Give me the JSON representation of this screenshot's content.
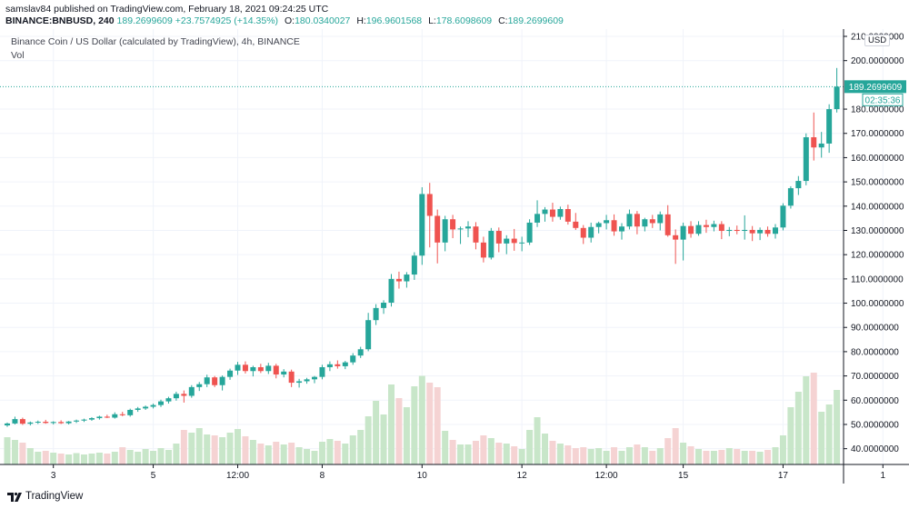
{
  "header": {
    "publisher": "samslav84 published on TradingView.com, February 18, 2021 09:24:25 UTC",
    "symbol": "BINANCE:BNBUSD, 240",
    "last": "189.2699609",
    "change": "+23.7574925 (+14.35%)",
    "o_label": "O:",
    "o_value": "180.0340027",
    "h_label": "H:",
    "h_value": "196.9601568",
    "l_label": "L:",
    "l_value": "178.6098609",
    "c_label": "C:",
    "c_value": "189.2699609"
  },
  "legend": {
    "title": "Binance Coin / US Dollar (calculated by TradingView), 4h, BINANCE",
    "vol": "Vol"
  },
  "footer": {
    "brand": "TradingView"
  },
  "colors": {
    "up": "#26a69a",
    "down": "#ef5350",
    "vol_up": "#c8e6c9",
    "vol_down": "#f5d3d3",
    "grid": "#f0f3fa",
    "price_line": "#26a69a"
  },
  "chart_data": {
    "type": "candlestick",
    "currency_label": "USD",
    "y_ticks": [
      "40.0000000",
      "50.0000000",
      "60.0000000",
      "70.0000000",
      "80.0000000",
      "90.0000000",
      "100.0000000",
      "110.0000000",
      "120.0000000",
      "130.0000000",
      "140.0000000",
      "150.0000000",
      "160.0000000",
      "170.0000000",
      "180.0000000",
      "200.0000000",
      "210.0000000"
    ],
    "y_tick_values": [
      40,
      50,
      60,
      70,
      80,
      90,
      100,
      110,
      120,
      130,
      140,
      150,
      160,
      170,
      180,
      200,
      210
    ],
    "ylim": [
      33.5,
      213
    ],
    "x_ticks": [
      {
        "label": "3",
        "index": 6
      },
      {
        "label": "5",
        "index": 19
      },
      {
        "label": "12:00",
        "index": 30
      },
      {
        "label": "8",
        "index": 41
      },
      {
        "label": "10",
        "index": 54
      },
      {
        "label": "12",
        "index": 67
      },
      {
        "label": "12:00",
        "index": 78
      },
      {
        "label": "15",
        "index": 88
      },
      {
        "label": "17",
        "index": 101
      },
      {
        "label": "1",
        "index": 114
      }
    ],
    "last_price": "189.2699609",
    "last_value": 189.27,
    "countdown": "02:35:36",
    "candles": [
      {
        "o": 49.6,
        "h": 50.8,
        "l": 49.0,
        "c": 50.4,
        "v": 6.0
      },
      {
        "o": 50.4,
        "h": 53.2,
        "l": 50.0,
        "c": 52.2,
        "v": 5.4
      },
      {
        "o": 52.2,
        "h": 52.8,
        "l": 49.8,
        "c": 50.3,
        "v": 4.8
      },
      {
        "o": 50.3,
        "h": 51.2,
        "l": 49.6,
        "c": 50.8,
        "v": 3.6
      },
      {
        "o": 50.8,
        "h": 51.6,
        "l": 50.2,
        "c": 51.1,
        "v": 2.8
      },
      {
        "o": 51.1,
        "h": 51.9,
        "l": 50.3,
        "c": 50.6,
        "v": 3.0
      },
      {
        "o": 50.6,
        "h": 51.3,
        "l": 50.0,
        "c": 51.0,
        "v": 2.6
      },
      {
        "o": 51.0,
        "h": 51.7,
        "l": 50.2,
        "c": 50.5,
        "v": 2.4
      },
      {
        "o": 50.5,
        "h": 51.4,
        "l": 50.0,
        "c": 51.2,
        "v": 2.2
      },
      {
        "o": 51.2,
        "h": 52.0,
        "l": 50.6,
        "c": 51.6,
        "v": 2.5
      },
      {
        "o": 51.6,
        "h": 52.4,
        "l": 51.0,
        "c": 52.0,
        "v": 2.2
      },
      {
        "o": 52.0,
        "h": 53.0,
        "l": 51.5,
        "c": 52.6,
        "v": 2.4
      },
      {
        "o": 52.6,
        "h": 53.6,
        "l": 52.0,
        "c": 53.2,
        "v": 2.6
      },
      {
        "o": 53.2,
        "h": 54.0,
        "l": 52.6,
        "c": 52.8,
        "v": 2.4
      },
      {
        "o": 52.8,
        "h": 55.0,
        "l": 52.4,
        "c": 54.2,
        "v": 2.8
      },
      {
        "o": 54.2,
        "h": 55.2,
        "l": 53.4,
        "c": 53.8,
        "v": 3.8
      },
      {
        "o": 53.8,
        "h": 56.5,
        "l": 53.2,
        "c": 56.0,
        "v": 3.2
      },
      {
        "o": 56.0,
        "h": 57.2,
        "l": 55.2,
        "c": 56.6,
        "v": 2.8
      },
      {
        "o": 56.6,
        "h": 57.8,
        "l": 56.0,
        "c": 57.3,
        "v": 3.4
      },
      {
        "o": 57.3,
        "h": 58.6,
        "l": 56.6,
        "c": 58.0,
        "v": 3.0
      },
      {
        "o": 58.0,
        "h": 60.2,
        "l": 57.2,
        "c": 59.5,
        "v": 3.6
      },
      {
        "o": 59.5,
        "h": 61.4,
        "l": 58.6,
        "c": 60.8,
        "v": 3.2
      },
      {
        "o": 60.8,
        "h": 63.5,
        "l": 59.8,
        "c": 62.6,
        "v": 4.6
      },
      {
        "o": 62.6,
        "h": 64.0,
        "l": 59.0,
        "c": 61.8,
        "v": 7.6
      },
      {
        "o": 61.8,
        "h": 66.2,
        "l": 61.0,
        "c": 65.4,
        "v": 7.0
      },
      {
        "o": 65.4,
        "h": 67.5,
        "l": 63.8,
        "c": 66.6,
        "v": 8.0
      },
      {
        "o": 66.6,
        "h": 70.5,
        "l": 65.4,
        "c": 69.4,
        "v": 6.6
      },
      {
        "o": 69.4,
        "h": 70.0,
        "l": 65.4,
        "c": 66.2,
        "v": 6.4
      },
      {
        "o": 66.2,
        "h": 70.2,
        "l": 64.0,
        "c": 69.6,
        "v": 6.0
      },
      {
        "o": 69.6,
        "h": 73.0,
        "l": 68.4,
        "c": 72.2,
        "v": 7.0
      },
      {
        "o": 72.2,
        "h": 75.8,
        "l": 70.4,
        "c": 74.6,
        "v": 7.8
      },
      {
        "o": 74.6,
        "h": 76.0,
        "l": 71.0,
        "c": 72.0,
        "v": 6.2
      },
      {
        "o": 72.0,
        "h": 74.2,
        "l": 69.8,
        "c": 73.6,
        "v": 5.4
      },
      {
        "o": 73.6,
        "h": 75.0,
        "l": 71.2,
        "c": 72.0,
        "v": 4.6
      },
      {
        "o": 72.0,
        "h": 75.4,
        "l": 70.8,
        "c": 74.2,
        "v": 4.2
      },
      {
        "o": 74.2,
        "h": 75.0,
        "l": 69.0,
        "c": 70.6,
        "v": 5.0
      },
      {
        "o": 70.6,
        "h": 72.8,
        "l": 69.4,
        "c": 71.8,
        "v": 4.4
      },
      {
        "o": 71.8,
        "h": 72.6,
        "l": 65.4,
        "c": 67.2,
        "v": 4.8
      },
      {
        "o": 67.2,
        "h": 68.8,
        "l": 65.2,
        "c": 67.8,
        "v": 3.8
      },
      {
        "o": 67.8,
        "h": 69.2,
        "l": 66.8,
        "c": 68.6,
        "v": 3.4
      },
      {
        "o": 68.6,
        "h": 70.0,
        "l": 67.0,
        "c": 69.6,
        "v": 3.0
      },
      {
        "o": 69.6,
        "h": 74.6,
        "l": 68.6,
        "c": 73.6,
        "v": 5.0
      },
      {
        "o": 73.6,
        "h": 76.0,
        "l": 72.0,
        "c": 74.8,
        "v": 5.6
      },
      {
        "o": 74.8,
        "h": 76.4,
        "l": 73.0,
        "c": 74.0,
        "v": 5.2
      },
      {
        "o": 74.0,
        "h": 76.2,
        "l": 72.8,
        "c": 75.6,
        "v": 4.6
      },
      {
        "o": 75.6,
        "h": 79.4,
        "l": 74.6,
        "c": 78.4,
        "v": 6.4
      },
      {
        "o": 78.4,
        "h": 82.0,
        "l": 77.4,
        "c": 81.0,
        "v": 7.6
      },
      {
        "o": 81.0,
        "h": 96.0,
        "l": 80.2,
        "c": 93.0,
        "v": 10.6
      },
      {
        "o": 93.0,
        "h": 99.6,
        "l": 91.0,
        "c": 98.0,
        "v": 14.0
      },
      {
        "o": 98.0,
        "h": 101.2,
        "l": 95.6,
        "c": 100.2,
        "v": 11.0
      },
      {
        "o": 100.2,
        "h": 112.0,
        "l": 98.6,
        "c": 110.0,
        "v": 17.6
      },
      {
        "o": 110.0,
        "h": 113.0,
        "l": 106.0,
        "c": 109.0,
        "v": 14.6
      },
      {
        "o": 109.0,
        "h": 112.8,
        "l": 106.4,
        "c": 111.8,
        "v": 12.6
      },
      {
        "o": 111.8,
        "h": 121.0,
        "l": 109.6,
        "c": 119.6,
        "v": 17.2
      },
      {
        "o": 119.6,
        "h": 147.8,
        "l": 115.8,
        "c": 145.0,
        "v": 19.5
      },
      {
        "o": 145.0,
        "h": 149.6,
        "l": 123.0,
        "c": 136.0,
        "v": 18.0
      },
      {
        "o": 136.0,
        "h": 138.6,
        "l": 116.4,
        "c": 125.0,
        "v": 17.0
      },
      {
        "o": 125.0,
        "h": 136.0,
        "l": 121.4,
        "c": 134.6,
        "v": 7.4
      },
      {
        "o": 134.6,
        "h": 136.4,
        "l": 126.8,
        "c": 130.4,
        "v": 5.4
      },
      {
        "o": 130.4,
        "h": 131.6,
        "l": 124.4,
        "c": 130.8,
        "v": 4.4
      },
      {
        "o": 130.8,
        "h": 133.8,
        "l": 127.2,
        "c": 131.6,
        "v": 4.4
      },
      {
        "o": 131.6,
        "h": 133.4,
        "l": 122.2,
        "c": 125.0,
        "v": 5.2
      },
      {
        "o": 125.0,
        "h": 127.4,
        "l": 116.8,
        "c": 118.8,
        "v": 6.4
      },
      {
        "o": 118.8,
        "h": 131.0,
        "l": 118.0,
        "c": 129.8,
        "v": 5.8
      },
      {
        "o": 129.8,
        "h": 131.2,
        "l": 121.0,
        "c": 124.6,
        "v": 4.8
      },
      {
        "o": 124.6,
        "h": 128.0,
        "l": 120.2,
        "c": 126.6,
        "v": 4.6
      },
      {
        "o": 126.6,
        "h": 130.6,
        "l": 121.6,
        "c": 124.8,
        "v": 4.0
      },
      {
        "o": 124.8,
        "h": 127.4,
        "l": 121.4,
        "c": 125.0,
        "v": 3.4
      },
      {
        "o": 125.0,
        "h": 134.6,
        "l": 124.0,
        "c": 133.2,
        "v": 7.6
      },
      {
        "o": 133.2,
        "h": 142.4,
        "l": 131.4,
        "c": 136.8,
        "v": 10.4
      },
      {
        "o": 136.8,
        "h": 139.6,
        "l": 133.6,
        "c": 138.6,
        "v": 6.8
      },
      {
        "o": 138.6,
        "h": 141.4,
        "l": 133.6,
        "c": 135.6,
        "v": 5.2
      },
      {
        "o": 135.6,
        "h": 139.8,
        "l": 134.4,
        "c": 138.8,
        "v": 4.6
      },
      {
        "o": 138.8,
        "h": 140.6,
        "l": 132.4,
        "c": 133.6,
        "v": 4.2
      },
      {
        "o": 133.6,
        "h": 137.2,
        "l": 130.2,
        "c": 131.0,
        "v": 3.6
      },
      {
        "o": 131.0,
        "h": 132.2,
        "l": 124.4,
        "c": 127.0,
        "v": 3.8
      },
      {
        "o": 127.0,
        "h": 133.2,
        "l": 125.0,
        "c": 131.4,
        "v": 3.4
      },
      {
        "o": 131.4,
        "h": 133.6,
        "l": 128.8,
        "c": 133.0,
        "v": 3.6
      },
      {
        "o": 133.0,
        "h": 136.4,
        "l": 130.4,
        "c": 134.2,
        "v": 3.0
      },
      {
        "o": 134.2,
        "h": 136.6,
        "l": 127.8,
        "c": 129.6,
        "v": 3.8
      },
      {
        "o": 129.6,
        "h": 133.0,
        "l": 126.2,
        "c": 131.6,
        "v": 3.0
      },
      {
        "o": 131.6,
        "h": 138.6,
        "l": 130.4,
        "c": 136.8,
        "v": 3.8
      },
      {
        "o": 136.8,
        "h": 138.0,
        "l": 128.4,
        "c": 131.6,
        "v": 4.4
      },
      {
        "o": 131.6,
        "h": 135.2,
        "l": 129.6,
        "c": 134.6,
        "v": 3.8
      },
      {
        "o": 134.6,
        "h": 136.4,
        "l": 131.0,
        "c": 133.0,
        "v": 3.0
      },
      {
        "o": 133.0,
        "h": 137.8,
        "l": 130.0,
        "c": 136.6,
        "v": 3.6
      },
      {
        "o": 136.6,
        "h": 140.4,
        "l": 127.4,
        "c": 128.0,
        "v": 5.8
      },
      {
        "o": 128.0,
        "h": 130.4,
        "l": 116.2,
        "c": 126.2,
        "v": 8.0
      },
      {
        "o": 126.2,
        "h": 133.2,
        "l": 117.6,
        "c": 131.8,
        "v": 4.8
      },
      {
        "o": 131.8,
        "h": 133.8,
        "l": 127.0,
        "c": 128.6,
        "v": 4.0
      },
      {
        "o": 128.6,
        "h": 133.8,
        "l": 127.8,
        "c": 132.2,
        "v": 3.4
      },
      {
        "o": 132.2,
        "h": 134.4,
        "l": 129.0,
        "c": 131.4,
        "v": 3.0
      },
      {
        "o": 131.4,
        "h": 134.0,
        "l": 129.6,
        "c": 132.6,
        "v": 3.0
      },
      {
        "o": 132.6,
        "h": 133.8,
        "l": 126.4,
        "c": 129.8,
        "v": 3.2
      },
      {
        "o": 129.8,
        "h": 131.4,
        "l": 127.6,
        "c": 130.2,
        "v": 3.6
      },
      {
        "o": 130.2,
        "h": 132.0,
        "l": 128.4,
        "c": 129.8,
        "v": 3.4
      },
      {
        "o": 129.8,
        "h": 136.2,
        "l": 126.2,
        "c": 130.2,
        "v": 3.0
      },
      {
        "o": 130.2,
        "h": 131.8,
        "l": 125.6,
        "c": 128.8,
        "v": 3.0
      },
      {
        "o": 128.8,
        "h": 131.2,
        "l": 126.0,
        "c": 130.2,
        "v": 2.8
      },
      {
        "o": 130.2,
        "h": 131.6,
        "l": 127.4,
        "c": 128.6,
        "v": 3.2
      },
      {
        "o": 128.6,
        "h": 132.6,
        "l": 126.6,
        "c": 131.2,
        "v": 3.8
      },
      {
        "o": 131.2,
        "h": 141.2,
        "l": 130.0,
        "c": 140.2,
        "v": 6.4
      },
      {
        "o": 140.2,
        "h": 148.2,
        "l": 139.0,
        "c": 147.4,
        "v": 12.6
      },
      {
        "o": 147.4,
        "h": 152.4,
        "l": 144.6,
        "c": 150.4,
        "v": 16.0
      },
      {
        "o": 150.4,
        "h": 170.0,
        "l": 148.6,
        "c": 168.4,
        "v": 19.4
      },
      {
        "o": 168.4,
        "h": 178.6,
        "l": 158.8,
        "c": 164.2,
        "v": 20.2
      },
      {
        "o": 164.2,
        "h": 170.6,
        "l": 160.0,
        "c": 165.8,
        "v": 11.6
      },
      {
        "o": 165.8,
        "h": 182.0,
        "l": 162.0,
        "c": 180.0,
        "v": 13.2
      },
      {
        "o": 180.0,
        "h": 196.96,
        "l": 178.61,
        "c": 189.27,
        "v": 16.4
      }
    ]
  }
}
